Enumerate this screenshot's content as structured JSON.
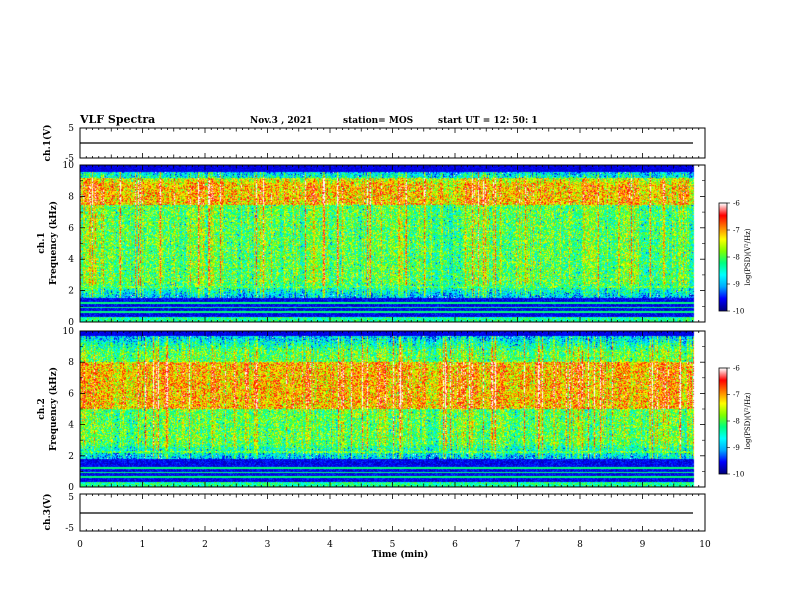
{
  "header": {
    "title": "VLF Spectra",
    "date": "Nov.3  , 2021",
    "station": "station= MOS",
    "start_ut": "start  UT =    12: 50: 1"
  },
  "chart_data": {
    "type": "heatmap",
    "x": {
      "label": "Time  (min)",
      "range": [
        0,
        10
      ],
      "ticks": [
        0,
        1,
        2,
        3,
        4,
        5,
        6,
        7,
        8,
        9,
        10
      ],
      "tick_labels": [
        "0",
        "1",
        "2",
        "3",
        "4",
        "5",
        "6",
        "7",
        "8",
        "9",
        "10"
      ],
      "data_end_min": 9.83
    },
    "panels": [
      {
        "id": "ch1-waveform",
        "kind": "waveform",
        "ylabel": "ch.1(V)",
        "ylim": [
          -5,
          5
        ],
        "tick_labels": [
          "5",
          "-5"
        ],
        "baseline_v": 0
      },
      {
        "id": "ch1-spectrogram",
        "kind": "spectrogram",
        "ylabel_line1": "ch.1",
        "ylabel_line2": "Frequency  (kHz)",
        "ylim": [
          0,
          10
        ],
        "ticks": [
          0,
          2,
          4,
          6,
          8,
          10
        ],
        "tick_labels": [
          "0",
          "2",
          "4",
          "6",
          "8",
          "10"
        ],
        "power_band_khz": [
          1.5,
          9.7
        ],
        "hot_band_khz": [
          7.5,
          9.2
        ],
        "dark_top_khz": 9.6,
        "dark_band_khz": [
          0.3,
          1.5
        ],
        "colorbar": {
          "label": "log(PSD)(V²/Hz)",
          "range": [
            -10,
            -6
          ],
          "tick_labels": [
            "-6",
            "-7",
            "-8",
            "-9",
            "-10"
          ]
        }
      },
      {
        "id": "ch2-spectrogram",
        "kind": "spectrogram",
        "ylabel_line1": "ch.2",
        "ylabel_line2": "Frequency  (kHz)",
        "ylim": [
          0,
          10
        ],
        "ticks": [
          0,
          2,
          4,
          6,
          8,
          10
        ],
        "tick_labels": [
          "0",
          "2",
          "4",
          "6",
          "8",
          "10"
        ],
        "power_band_khz": [
          1.8,
          9.7
        ],
        "hot_band_khz": [
          5.0,
          8.0
        ],
        "dark_top_khz": 9.7,
        "dark_band_khz": [
          0.3,
          1.8
        ],
        "colorbar": {
          "label": "log(PSD)(V²/Hz)",
          "range": [
            -10,
            -6
          ],
          "tick_labels": [
            "-6",
            "-7",
            "-8",
            "-9",
            "-10"
          ]
        }
      },
      {
        "id": "ch3-waveform",
        "kind": "waveform",
        "ylabel": "ch.3(V)",
        "ylim": [
          -5,
          5
        ],
        "tick_labels": [
          "5",
          "-5"
        ],
        "baseline_v": 0
      }
    ],
    "colormap": [
      "#000080",
      "#0000ff",
      "#00aaff",
      "#00ffff",
      "#00ff80",
      "#80ff00",
      "#ffff00",
      "#ff8000",
      "#ff0000",
      "#ffffff"
    ]
  }
}
